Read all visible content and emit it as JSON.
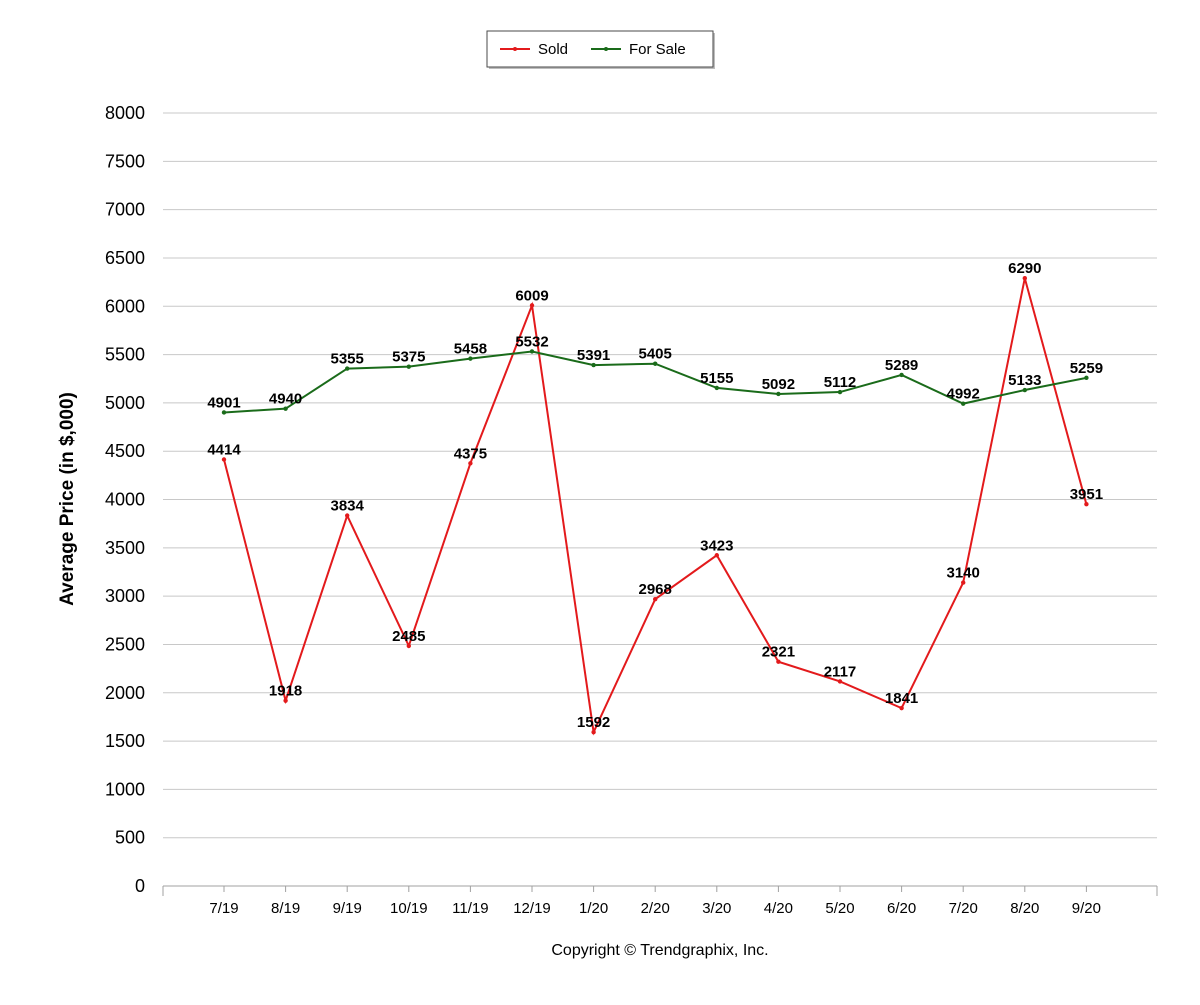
{
  "chart_data": {
    "type": "line",
    "title": "",
    "xlabel": "",
    "ylabel": "Average Price (in $,000)",
    "ylim": [
      0,
      8000
    ],
    "yticks": [
      "0",
      "500",
      "1000",
      "1500",
      "2000",
      "2500",
      "3000",
      "3500",
      "4000",
      "4500",
      "5000",
      "5500",
      "6000",
      "6500",
      "7000",
      "7500",
      "8000"
    ],
    "categories": [
      "7/19",
      "8/19",
      "9/19",
      "10/19",
      "11/19",
      "12/19",
      "1/20",
      "2/20",
      "3/20",
      "4/20",
      "5/20",
      "6/20",
      "7/20",
      "8/20",
      "9/20"
    ],
    "grid": true,
    "legend_position": "top-center",
    "series": [
      {
        "name": "Sold",
        "color": "#e31a1c",
        "values": [
          4414,
          1918,
          3834,
          2485,
          4375,
          6009,
          1592,
          2968,
          3423,
          2321,
          2117,
          1841,
          3140,
          6290,
          3951
        ]
      },
      {
        "name": "For Sale",
        "color": "#1a6b1a",
        "values": [
          4901,
          4940,
          5355,
          5375,
          5458,
          5532,
          5391,
          5405,
          5155,
          5092,
          5112,
          5289,
          4992,
          5133,
          5259
        ]
      }
    ],
    "footer": "Copyright © Trendgraphix, Inc."
  }
}
